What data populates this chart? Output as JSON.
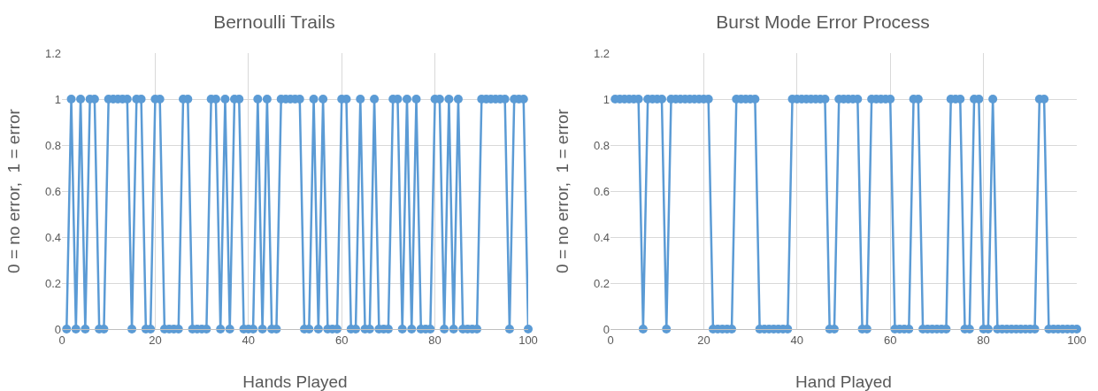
{
  "chart_data": [
    {
      "type": "line",
      "title": "Bernoulli Trails",
      "xlabel": "Hands Played",
      "ylabel": "0 = no error,  1 = error",
      "x": [
        1,
        2,
        3,
        4,
        5,
        6,
        7,
        8,
        9,
        10,
        11,
        12,
        13,
        14,
        15,
        16,
        17,
        18,
        19,
        20,
        21,
        22,
        23,
        24,
        25,
        26,
        27,
        28,
        29,
        30,
        31,
        32,
        33,
        34,
        35,
        36,
        37,
        38,
        39,
        40,
        41,
        42,
        43,
        44,
        45,
        46,
        47,
        48,
        49,
        50,
        51,
        52,
        53,
        54,
        55,
        56,
        57,
        58,
        59,
        60,
        61,
        62,
        63,
        64,
        65,
        66,
        67,
        68,
        69,
        70,
        71,
        72,
        73,
        74,
        75,
        76,
        77,
        78,
        79,
        80,
        81,
        82,
        83,
        84,
        85,
        86,
        87,
        88,
        89,
        90,
        91,
        92,
        93,
        94,
        95,
        96,
        97,
        98,
        99,
        100
      ],
      "series": [
        {
          "color": "#5b9bd5",
          "values": [
            0,
            1,
            0,
            1,
            0,
            1,
            1,
            0,
            0,
            1,
            1,
            1,
            1,
            1,
            0,
            1,
            1,
            0,
            0,
            1,
            1,
            0,
            0,
            0,
            0,
            1,
            1,
            0,
            0,
            0,
            0,
            1,
            1,
            0,
            1,
            0,
            1,
            1,
            0,
            0,
            0,
            1,
            0,
            1,
            0,
            0,
            1,
            1,
            1,
            1,
            1,
            0,
            0,
            1,
            0,
            1,
            0,
            0,
            0,
            1,
            1,
            0,
            0,
            1,
            0,
            0,
            1,
            0,
            0,
            0,
            1,
            1,
            0,
            1,
            0,
            1,
            0,
            0,
            0,
            1,
            1,
            0,
            1,
            0,
            1,
            0,
            0,
            0,
            0,
            1,
            1,
            1,
            1,
            1,
            1,
            0,
            1,
            1,
            1,
            0
          ]
        }
      ],
      "xlim": [
        0,
        100
      ],
      "xticks": [
        0,
        20,
        40,
        60,
        80,
        100
      ],
      "ylim": [
        0,
        1.2
      ],
      "yticks": [
        0,
        0.2,
        0.4,
        0.6,
        0.8,
        1,
        1.2
      ],
      "grid": true,
      "marker": "circle",
      "line_style": "solid"
    },
    {
      "type": "line",
      "title": "Burst Mode Error Process",
      "xlabel": "Hand Played",
      "ylabel": "0 = no error,  1 = error",
      "x": [
        1,
        2,
        3,
        4,
        5,
        6,
        7,
        8,
        9,
        10,
        11,
        12,
        13,
        14,
        15,
        16,
        17,
        18,
        19,
        20,
        21,
        22,
        23,
        24,
        25,
        26,
        27,
        28,
        29,
        30,
        31,
        32,
        33,
        34,
        35,
        36,
        37,
        38,
        39,
        40,
        41,
        42,
        43,
        44,
        45,
        46,
        47,
        48,
        49,
        50,
        51,
        52,
        53,
        54,
        55,
        56,
        57,
        58,
        59,
        60,
        61,
        62,
        63,
        64,
        65,
        66,
        67,
        68,
        69,
        70,
        71,
        72,
        73,
        74,
        75,
        76,
        77,
        78,
        79,
        80,
        81,
        82,
        83,
        84,
        85,
        86,
        87,
        88,
        89,
        90,
        91,
        92,
        93,
        94,
        95,
        96,
        97,
        98,
        99,
        100
      ],
      "series": [
        {
          "color": "#5b9bd5",
          "values": [
            1,
            1,
            1,
            1,
            1,
            1,
            0,
            1,
            1,
            1,
            1,
            0,
            1,
            1,
            1,
            1,
            1,
            1,
            1,
            1,
            1,
            0,
            0,
            0,
            0,
            0,
            1,
            1,
            1,
            1,
            1,
            0,
            0,
            0,
            0,
            0,
            0,
            0,
            1,
            1,
            1,
            1,
            1,
            1,
            1,
            1,
            0,
            0,
            1,
            1,
            1,
            1,
            1,
            0,
            0,
            1,
            1,
            1,
            1,
            1,
            0,
            0,
            0,
            0,
            1,
            1,
            0,
            0,
            0,
            0,
            0,
            0,
            1,
            1,
            1,
            0,
            0,
            1,
            1,
            0,
            0,
            1,
            0,
            0,
            0,
            0,
            0,
            0,
            0,
            0,
            0,
            1,
            1,
            0,
            0,
            0,
            0,
            0,
            0,
            0
          ]
        }
      ],
      "xlim": [
        0,
        100
      ],
      "xticks": [
        0,
        20,
        40,
        60,
        80,
        100
      ],
      "ylim": [
        0,
        1.2
      ],
      "yticks": [
        0,
        0.2,
        0.4,
        0.6,
        0.8,
        1,
        1.2
      ],
      "grid": true,
      "marker": "circle",
      "line_style": "solid"
    }
  ]
}
